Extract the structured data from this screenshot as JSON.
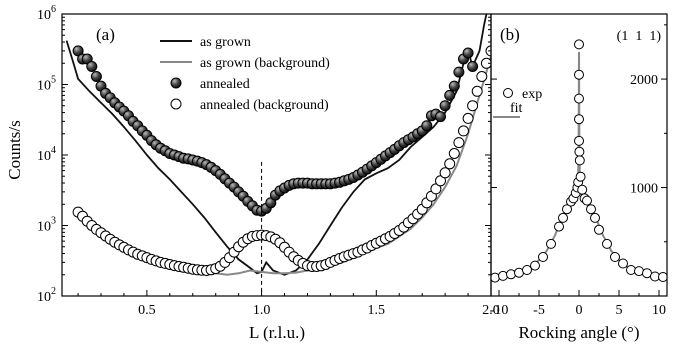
{
  "chart_data": [
    {
      "type": "line+scatter",
      "panel_label": "(a)",
      "xlabel": "L (r.l.u.)",
      "ylabel": "Counts/s",
      "xlim": [
        0.13,
        2.0
      ],
      "ylim": [
        100,
        1000000
      ],
      "yscale": "log",
      "x_ticks": [
        0.5,
        1.0,
        1.5,
        2.0
      ],
      "x_tick_labels": [
        "0.5",
        "1.0",
        "1.5",
        "2.0"
      ],
      "y_ticks": [
        100,
        1000,
        10000,
        100000,
        1000000
      ],
      "y_tick_base": "10",
      "y_tick_exponents": [
        "2",
        "3",
        "4",
        "5",
        "6"
      ],
      "reference_line_x": 1.0,
      "legend_position": "top-center",
      "series": [
        {
          "name": "as grown",
          "style": "line",
          "color": "#111111",
          "x": [
            0.15,
            0.18,
            0.2,
            0.25,
            0.3,
            0.35,
            0.4,
            0.45,
            0.5,
            0.55,
            0.6,
            0.65,
            0.7,
            0.75,
            0.8,
            0.85,
            0.9,
            0.95,
            0.98,
            1.0,
            1.02,
            1.05,
            1.1,
            1.15,
            1.2,
            1.25,
            1.3,
            1.35,
            1.4,
            1.45,
            1.5,
            1.55,
            1.6,
            1.65,
            1.7,
            1.75,
            1.8,
            1.85,
            1.88,
            1.9,
            1.92,
            1.95,
            1.97,
            2.0
          ],
          "y": [
            420000,
            200000,
            120000,
            80000,
            55000,
            38000,
            25000,
            16000,
            10000,
            6500,
            4500,
            3000,
            2000,
            1300,
            800,
            500,
            330,
            250,
            210,
            220,
            300,
            230,
            200,
            230,
            330,
            550,
            1000,
            1800,
            3000,
            4500,
            5500,
            6500,
            8500,
            13000,
            18000,
            25000,
            40000,
            80000,
            200000,
            300000,
            180000,
            300000,
            700000,
            2000000
          ]
        },
        {
          "name": "as grown (background)",
          "style": "line",
          "color": "#888888",
          "x": [
            0.2,
            0.25,
            0.3,
            0.35,
            0.4,
            0.45,
            0.5,
            0.55,
            0.6,
            0.65,
            0.7,
            0.75,
            0.8,
            0.85,
            0.9,
            0.95,
            1.0,
            1.05,
            1.1,
            1.15,
            1.2,
            1.25,
            1.3,
            1.35,
            1.4,
            1.45,
            1.5,
            1.55,
            1.6,
            1.65,
            1.7,
            1.75,
            1.8,
            1.85,
            1.9,
            1.95,
            2.0
          ],
          "y": [
            1500,
            1000,
            750,
            600,
            500,
            430,
            370,
            320,
            290,
            260,
            240,
            220,
            210,
            200,
            210,
            230,
            220,
            210,
            210,
            215,
            230,
            240,
            260,
            300,
            350,
            420,
            480,
            550,
            700,
            900,
            1300,
            2000,
            3500,
            7000,
            20000,
            70000,
            250000
          ]
        },
        {
          "name": "annealed",
          "style": "filled-circle",
          "color": "#222222",
          "x": [
            0.2,
            0.22,
            0.24,
            0.26,
            0.28,
            0.3,
            0.32,
            0.34,
            0.36,
            0.38,
            0.4,
            0.42,
            0.44,
            0.46,
            0.48,
            0.5,
            0.52,
            0.54,
            0.56,
            0.58,
            0.6,
            0.62,
            0.64,
            0.66,
            0.68,
            0.7,
            0.72,
            0.74,
            0.76,
            0.78,
            0.8,
            0.82,
            0.84,
            0.86,
            0.88,
            0.9,
            0.92,
            0.94,
            0.96,
            0.98,
            1.0,
            1.02,
            1.04,
            1.06,
            1.08,
            1.1,
            1.12,
            1.14,
            1.16,
            1.18,
            1.2,
            1.22,
            1.24,
            1.26,
            1.28,
            1.3,
            1.32,
            1.34,
            1.36,
            1.38,
            1.4,
            1.42,
            1.44,
            1.46,
            1.48,
            1.5,
            1.52,
            1.54,
            1.56,
            1.58,
            1.6,
            1.62,
            1.64,
            1.66,
            1.68,
            1.7,
            1.72,
            1.74,
            1.76,
            1.78,
            1.8,
            1.82,
            1.84,
            1.86,
            1.88,
            1.9,
            1.92
          ],
          "y": [
            300000,
            230000,
            230000,
            180000,
            130000,
            95000,
            75000,
            65000,
            55000,
            48000,
            42000,
            36000,
            30000,
            26000,
            22000,
            19000,
            16000,
            14000,
            12500,
            11500,
            10500,
            10000,
            9500,
            9000,
            8800,
            8500,
            8200,
            7800,
            7300,
            6700,
            6000,
            5300,
            4600,
            4000,
            3500,
            3000,
            2600,
            2200,
            1900,
            1650,
            1600,
            1750,
            2100,
            2700,
            3100,
            3400,
            3700,
            3900,
            4000,
            4000,
            4000,
            3900,
            3900,
            3900,
            3900,
            3900,
            4000,
            4100,
            4300,
            4500,
            4800,
            5200,
            5700,
            6300,
            7000,
            7800,
            8700,
            9700,
            10800,
            12000,
            13500,
            15000,
            16500,
            18000,
            20000,
            22000,
            26000,
            36000,
            38000,
            35000,
            50000,
            70000,
            95000,
            150000,
            230000,
            280000,
            180000
          ]
        },
        {
          "name": "annealed (background)",
          "style": "open-circle",
          "color": "#000000",
          "x": [
            0.2,
            0.22,
            0.24,
            0.26,
            0.28,
            0.3,
            0.32,
            0.34,
            0.36,
            0.38,
            0.4,
            0.42,
            0.44,
            0.46,
            0.48,
            0.5,
            0.52,
            0.54,
            0.56,
            0.58,
            0.6,
            0.62,
            0.64,
            0.66,
            0.68,
            0.7,
            0.72,
            0.74,
            0.76,
            0.78,
            0.8,
            0.82,
            0.84,
            0.86,
            0.88,
            0.9,
            0.92,
            0.94,
            0.96,
            0.98,
            1.0,
            1.02,
            1.04,
            1.06,
            1.08,
            1.1,
            1.12,
            1.14,
            1.16,
            1.18,
            1.2,
            1.22,
            1.24,
            1.26,
            1.28,
            1.3,
            1.32,
            1.34,
            1.36,
            1.38,
            1.4,
            1.42,
            1.44,
            1.46,
            1.48,
            1.5,
            1.52,
            1.54,
            1.56,
            1.58,
            1.6,
            1.62,
            1.64,
            1.66,
            1.68,
            1.7,
            1.72,
            1.74,
            1.76,
            1.78,
            1.8,
            1.82,
            1.84,
            1.86,
            1.88,
            1.9,
            1.92,
            1.94,
            1.96,
            1.98,
            2.0
          ],
          "y": [
            1550,
            1350,
            1150,
            1000,
            880,
            790,
            710,
            640,
            580,
            530,
            490,
            450,
            420,
            390,
            370,
            350,
            330,
            315,
            300,
            290,
            280,
            270,
            262,
            255,
            248,
            240,
            235,
            232,
            230,
            235,
            245,
            265,
            300,
            350,
            420,
            500,
            580,
            650,
            700,
            720,
            730,
            720,
            690,
            640,
            570,
            490,
            420,
            360,
            320,
            290,
            270,
            262,
            262,
            268,
            280,
            300,
            320,
            340,
            360,
            380,
            400,
            420,
            450,
            480,
            520,
            560,
            600,
            650,
            700,
            770,
            850,
            950,
            1100,
            1250,
            1450,
            1700,
            2100,
            2600,
            3300,
            4300,
            5600,
            7500,
            10500,
            15000,
            22000,
            33000,
            50000,
            80000,
            130000,
            200000,
            300000
          ]
        }
      ]
    },
    {
      "type": "line+scatter",
      "panel_label": "(b)",
      "annotation": "(1  1  1)",
      "xlabel": "Rocking angle (°)",
      "ylabel": "",
      "xlim": [
        -11,
        11
      ],
      "ylim": [
        0,
        2600
      ],
      "x_ticks": [
        -10,
        -5,
        0,
        5,
        10
      ],
      "x_tick_labels": [
        "-10",
        "-5",
        "0",
        "5",
        "10"
      ],
      "y_ticks": [
        1000,
        2000
      ],
      "y_tick_labels": [
        "1000",
        "2000"
      ],
      "legend_position": "upper-left",
      "series": [
        {
          "name": "exp",
          "style": "open-circle",
          "color": "#000000",
          "x": [
            -10.5,
            -9.5,
            -8.5,
            -7.5,
            -6.5,
            -5.5,
            -4.5,
            -3.5,
            -2.5,
            -2.0,
            -1.5,
            -1.0,
            -0.7,
            -0.4,
            -0.2,
            -0.1,
            0.0,
            0.0,
            0.0,
            0.0,
            0.0,
            0.05,
            0.1,
            0.2,
            0.4,
            0.7,
            1.0,
            1.5,
            2.0,
            2.5,
            3.5,
            4.5,
            5.5,
            6.5,
            7.5,
            8.5,
            9.5,
            10.5
          ],
          "y": [
            170,
            185,
            200,
            215,
            240,
            280,
            360,
            480,
            640,
            720,
            800,
            870,
            900,
            950,
            1000,
            1050,
            2320,
            2040,
            1820,
            1630,
            1430,
            1330,
            1250,
            1100,
            980,
            900,
            880,
            800,
            720,
            610,
            480,
            360,
            300,
            240,
            230,
            210,
            180,
            175
          ]
        },
        {
          "name": "fit",
          "style": "line",
          "color": "#888888",
          "x": [
            -11,
            -10,
            -9,
            -8,
            -7,
            -6,
            -5,
            -4,
            -3,
            -2.5,
            -2,
            -1.5,
            -1,
            -0.7,
            -0.4,
            -0.2,
            -0.1,
            -0.05,
            0,
            0.05,
            0.1,
            0.2,
            0.4,
            0.7,
            1,
            1.5,
            2,
            2.5,
            3,
            4,
            5,
            6,
            7,
            8,
            9,
            10,
            11
          ],
          "y": [
            160,
            175,
            190,
            205,
            230,
            270,
            330,
            420,
            560,
            650,
            740,
            810,
            870,
            900,
            940,
            1000,
            1080,
            1400,
            2250,
            1400,
            1080,
            1000,
            940,
            900,
            870,
            810,
            740,
            650,
            560,
            420,
            330,
            270,
            230,
            205,
            190,
            175,
            160
          ]
        }
      ]
    }
  ]
}
